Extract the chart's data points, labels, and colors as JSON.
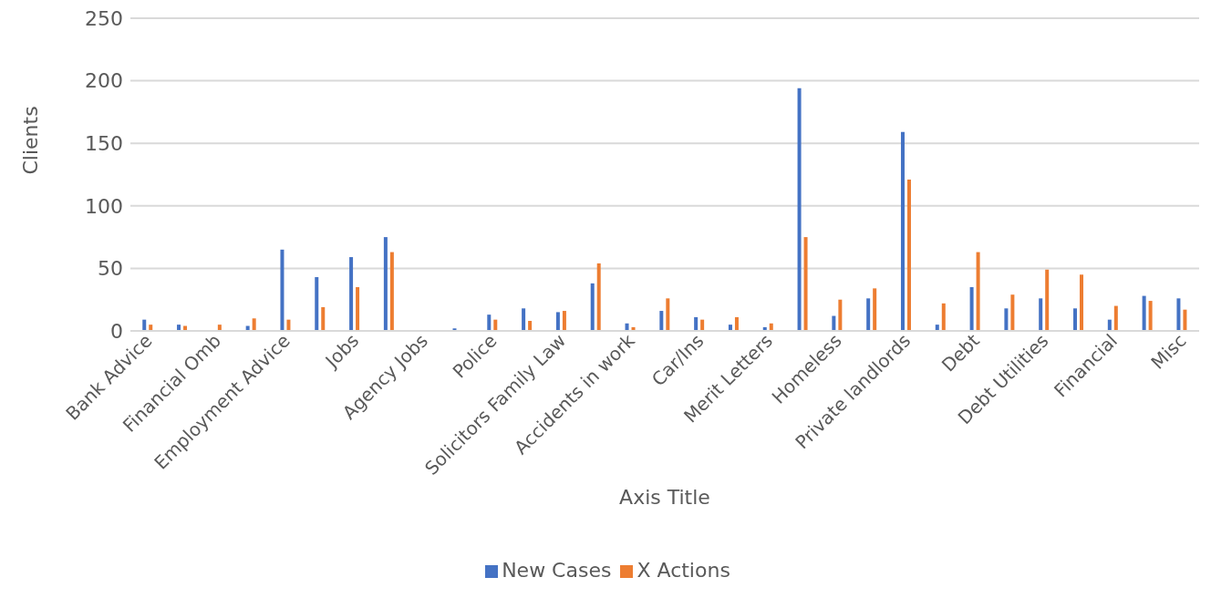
{
  "chart_data": {
    "type": "bar",
    "xlabel": "Axis Title",
    "ylabel": "Clients",
    "categories": [
      "Bank Advice",
      null,
      "Financial Omb",
      null,
      "Employment Advice",
      null,
      "Jobs",
      null,
      "Agency Jobs",
      null,
      "Police",
      null,
      "Solicitors Family Law",
      null,
      "Accidents in work",
      null,
      "Car/Ins",
      null,
      "Merit Letters",
      null,
      "Homeless",
      null,
      "Private landlords",
      null,
      "Debt",
      null,
      "Debt Utilities",
      null,
      "Financial",
      null,
      "Misc"
    ],
    "series": [
      {
        "name": "New Cases",
        "color": "#4472c4",
        "values": [
          9,
          5,
          0,
          4,
          65,
          43,
          59,
          75,
          0,
          2,
          13,
          18,
          15,
          38,
          6,
          16,
          11,
          5,
          3,
          194,
          12,
          26,
          159,
          5,
          35,
          18,
          26,
          18,
          9,
          28,
          26
        ]
      },
      {
        "name": "X Actions",
        "color": "#ed7d31",
        "values": [
          5,
          4,
          5,
          10,
          9,
          19,
          35,
          63,
          0,
          0,
          9,
          8,
          16,
          54,
          3,
          26,
          9,
          11,
          6,
          75,
          25,
          34,
          121,
          22,
          63,
          29,
          49,
          45,
          20,
          24,
          17
        ]
      }
    ],
    "ylim": [
      0,
      250
    ],
    "yticks": [
      0,
      50,
      100,
      150,
      200,
      250
    ],
    "grid": "y",
    "legend": "bottom"
  }
}
